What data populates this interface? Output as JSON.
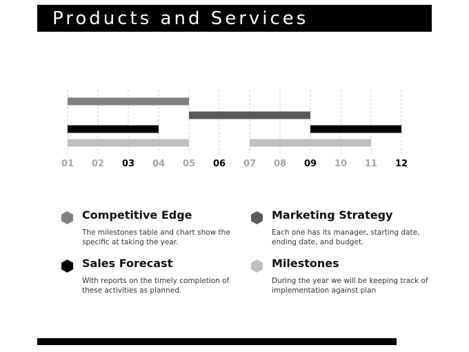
{
  "header": {
    "title": "Products and Services"
  },
  "chart_data": {
    "type": "gantt",
    "categories": [
      "01",
      "02",
      "03",
      "04",
      "05",
      "06",
      "07",
      "08",
      "09",
      "10",
      "11",
      "12"
    ],
    "emphasized_ticks": [
      "03",
      "06",
      "09",
      "12"
    ],
    "grid": true,
    "rows": [
      {
        "color": "#808080",
        "segments": [
          [
            1,
            5
          ]
        ]
      },
      {
        "color": "#595959",
        "segments": [
          [
            5,
            9
          ]
        ]
      },
      {
        "color": "#000000",
        "segments": [
          [
            1,
            4
          ],
          [
            9,
            12
          ]
        ]
      },
      {
        "color": "#bfbfbf",
        "segments": [
          [
            1,
            5
          ],
          [
            7,
            11
          ]
        ]
      }
    ],
    "tick_color": "#a6a6a6",
    "tick_emphasis_color": "#000000"
  },
  "legend": [
    {
      "title": "Competitive Edge",
      "desc": "The milestones table and chart show the specific at taking the year.",
      "color": "#808080"
    },
    {
      "title": "Marketing Strategy",
      "desc": "Each one has its manager, starting date, ending date, and budget.",
      "color": "#595959"
    },
    {
      "title": "Sales Forecast",
      "desc": "With reports on the timely completion of these activities as planned.",
      "color": "#000000"
    },
    {
      "title": "Milestones",
      "desc": "During the year we will be keeping track of implementation against plan",
      "color": "#bfbfbf"
    }
  ]
}
